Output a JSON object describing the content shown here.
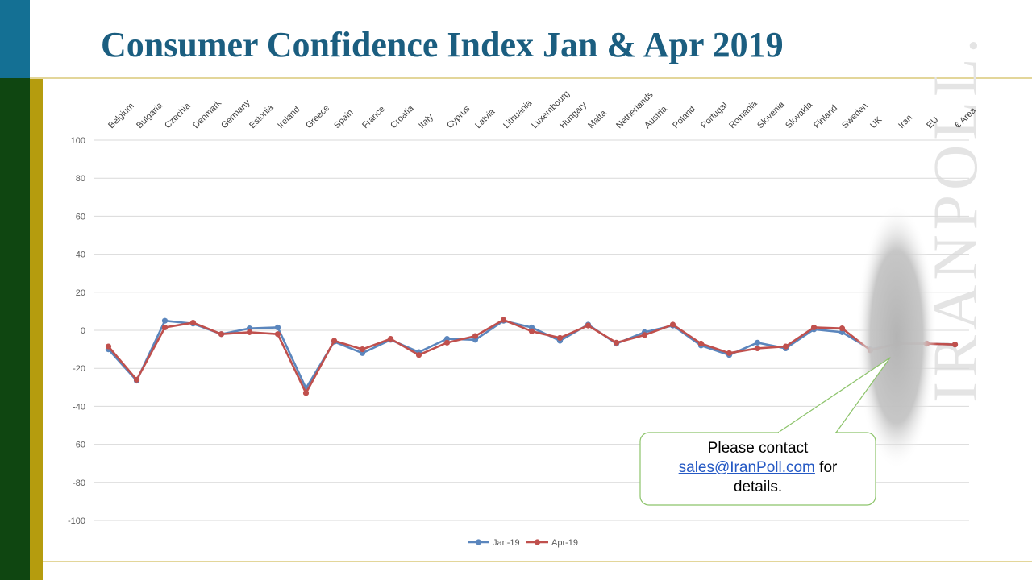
{
  "title": "Consumer Confidence Index Jan & Apr 2019",
  "watermark": "IRANPOLL.",
  "callout": {
    "line1": "Please contact",
    "email": "sales@IranPoll.com",
    "after_email": " for",
    "line3": "details."
  },
  "colors": {
    "jan": "#5b86bd",
    "apr": "#c0504d",
    "title": "#1b5e80",
    "callout_border": "#8cc36a",
    "grid": "#d9d9d9"
  },
  "chart_data": {
    "type": "line",
    "title": "",
    "xlabel": "",
    "ylabel": "",
    "ylim": [
      -100,
      100
    ],
    "yticks": [
      100,
      80,
      60,
      40,
      20,
      0,
      -20,
      -40,
      -60,
      -80,
      -100
    ],
    "grid": true,
    "legend_position": "bottom",
    "categories": [
      "Belgium",
      "Bulgaria",
      "Czechia",
      "Denmark",
      "Germany",
      "Estonia",
      "Ireland",
      "Greece",
      "Spain",
      "France",
      "Croatia",
      "Italy",
      "Cyprus",
      "Latvia",
      "Lithuania",
      "Luxembourg",
      "Hungary",
      "Malta",
      "Netherlands",
      "Austria",
      "Poland",
      "Portugal",
      "Romania",
      "Slovenia",
      "Slovakia",
      "Finland",
      "Sweden",
      "UK",
      "Iran",
      "EU",
      "€ Area"
    ],
    "series": [
      {
        "name": "Jan-19",
        "values": [
          -10,
          -26.5,
          5,
          3.5,
          -2,
          1,
          1.5,
          -30.5,
          -6,
          -12,
          -5,
          -11.5,
          -4.5,
          -5,
          5,
          1.5,
          -5.5,
          3,
          -7,
          -1,
          2.5,
          -8,
          -13,
          -6.5,
          -9.5,
          0.5,
          -1,
          -10,
          -7,
          -7,
          -7.5
        ]
      },
      {
        "name": "Apr-19",
        "values": [
          -8.5,
          -26,
          1.5,
          4,
          -2,
          -1,
          -2,
          -33,
          -5.5,
          -10,
          -4.5,
          -13,
          -6.5,
          -3,
          5.5,
          -0.5,
          -4,
          2.5,
          -6.5,
          -2.5,
          3,
          -7,
          -12,
          -9.5,
          -8.5,
          1.5,
          1,
          -10.5,
          -7,
          -7,
          -7.5
        ]
      }
    ]
  }
}
